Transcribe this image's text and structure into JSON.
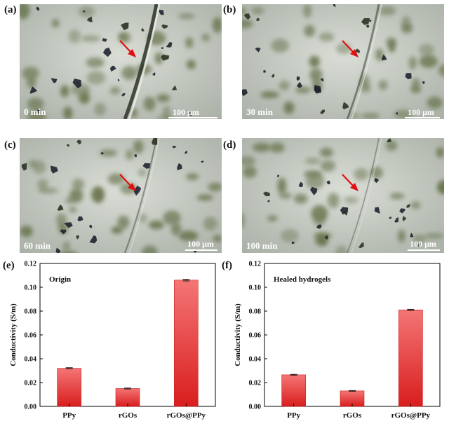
{
  "panels": {
    "a": {
      "label": "(a)",
      "time": "0 min",
      "scale": "100 μm"
    },
    "b": {
      "label": "(b)",
      "time": "30 min",
      "scale": "100 μm"
    },
    "c": {
      "label": "(c)",
      "time": "60 min",
      "scale": "100 μm"
    },
    "d": {
      "label": "(d)",
      "time": "100 min",
      "scale": "100 μm"
    },
    "e": {
      "label": "(e)"
    },
    "f": {
      "label": "(f)"
    }
  },
  "colors": {
    "bar_top": "#f47575",
    "bar_bottom": "#d91e1e",
    "arrow": "#e01010",
    "micro_bg": "#c9cec8"
  },
  "chart_data": [
    {
      "type": "bar",
      "title": "Origin",
      "ylabel": "Conductivity (S/m)",
      "categories": [
        "PPy",
        "rGOs",
        "rGOs@PPy"
      ],
      "values": [
        0.032,
        0.015,
        0.106
      ],
      "errors": [
        0.0005,
        0.0004,
        0.0007
      ],
      "ylim": [
        0,
        0.12
      ],
      "yticks": [
        "0.00",
        "0.02",
        "0.04",
        "0.06",
        "0.08",
        "0.10",
        "0.12"
      ]
    },
    {
      "type": "bar",
      "title": "Healed hydrogels",
      "ylabel": "Conductivity (S/m)",
      "categories": [
        "PPy",
        "rGOs",
        "rGOs@PPy"
      ],
      "values": [
        0.0265,
        0.013,
        0.081
      ],
      "errors": [
        0.0004,
        0.0003,
        0.0005
      ],
      "ylim": [
        0,
        0.12
      ],
      "yticks": [
        "0.00",
        "0.02",
        "0.04",
        "0.06",
        "0.08",
        "0.10",
        "0.12"
      ]
    }
  ]
}
